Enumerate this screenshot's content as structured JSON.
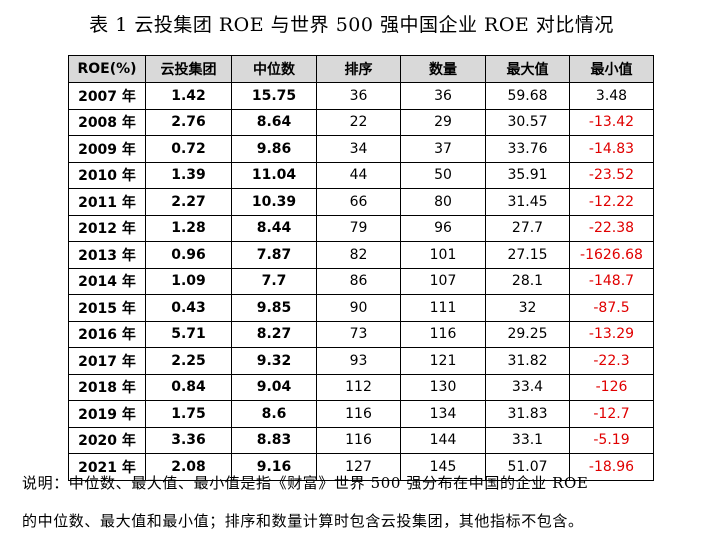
{
  "title": "表 1 云投集团 ROE 与世界 500 强中国企业 ROE 对比情况",
  "table": {
    "headers": [
      "ROE(%)",
      "云投集团",
      "中位数",
      "排序",
      "数量",
      "最大值",
      "最小值"
    ],
    "rows": [
      [
        "2007 年",
        "1.42",
        "15.75",
        "36",
        "36",
        "59.68",
        "3.48"
      ],
      [
        "2008 年",
        "2.76",
        "8.64",
        "22",
        "29",
        "30.57",
        "-13.42"
      ],
      [
        "2009 年",
        "0.72",
        "9.86",
        "34",
        "37",
        "33.76",
        "-14.83"
      ],
      [
        "2010 年",
        "1.39",
        "11.04",
        "44",
        "50",
        "35.91",
        "-23.52"
      ],
      [
        "2011 年",
        "2.27",
        "10.39",
        "66",
        "80",
        "31.45",
        "-12.22"
      ],
      [
        "2012 年",
        "1.28",
        "8.44",
        "79",
        "96",
        "27.7",
        "-22.38"
      ],
      [
        "2013 年",
        "0.96",
        "7.87",
        "82",
        "101",
        "27.15",
        "-1626.68"
      ],
      [
        "2014 年",
        "1.09",
        "7.7",
        "86",
        "107",
        "28.1",
        "-148.7"
      ],
      [
        "2015 年",
        "0.43",
        "9.85",
        "90",
        "111",
        "32",
        "-87.5"
      ],
      [
        "2016 年",
        "5.71",
        "8.27",
        "73",
        "116",
        "29.25",
        "-13.29"
      ],
      [
        "2017 年",
        "2.25",
        "9.32",
        "93",
        "121",
        "31.82",
        "-22.3"
      ],
      [
        "2018 年",
        "0.84",
        "9.04",
        "112",
        "130",
        "33.4",
        "-126"
      ],
      [
        "2019 年",
        "1.75",
        "8.6",
        "116",
        "134",
        "31.83",
        "-12.7"
      ],
      [
        "2020 年",
        "3.36",
        "8.83",
        "116",
        "144",
        "33.1",
        "-5.19"
      ],
      [
        "2021 年",
        "2.08",
        "9.16",
        "127",
        "145",
        "51.07",
        "-18.96"
      ]
    ]
  },
  "note": {
    "line1": "说明：中位数、最大值、最小值是指《财富》世界 500 强分布在中国的企业 ROE",
    "line2": "的中位数、最大值和最小值；排序和数量计算时包含云投集团，其他指标不包含。"
  },
  "colors": {
    "header_bg": "#d9d9d9",
    "negative": "#e00000"
  }
}
